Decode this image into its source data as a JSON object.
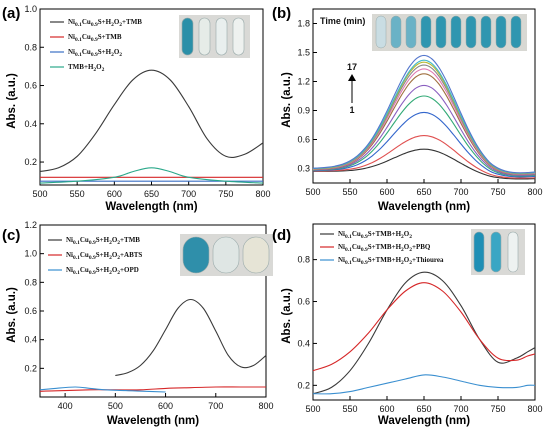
{
  "chart_data": [
    {
      "panel": "(a)",
      "type": "line",
      "xlabel": "Wavelength (nm)",
      "ylabel": "Abs. (a.u.)",
      "xlim": [
        500,
        800
      ],
      "ylim": [
        0.08,
        1.0
      ],
      "xticks": [
        "500",
        "550",
        "600",
        "650",
        "700",
        "750",
        "800"
      ],
      "yticks": [
        "0.2",
        "0.4",
        "0.6",
        "0.8",
        "1.0"
      ],
      "legend_position": "top-left",
      "inset_photo": "four test tubes: blue, clear, clear, clear",
      "series": [
        {
          "name": "Ni0.1Cu0.9S+H2O2+TMB",
          "color": "#3a3a3a",
          "x": [
            500,
            525,
            550,
            575,
            600,
            625,
            650,
            675,
            700,
            725,
            750,
            775,
            800
          ],
          "y": [
            0.15,
            0.17,
            0.23,
            0.35,
            0.5,
            0.63,
            0.68,
            0.63,
            0.49,
            0.32,
            0.23,
            0.24,
            0.3
          ]
        },
        {
          "name": "Ni0.1Cu0.9S+TMB",
          "color": "#d62728",
          "x": [
            500,
            550,
            600,
            650,
            700,
            750,
            800
          ],
          "y": [
            0.12,
            0.12,
            0.12,
            0.12,
            0.12,
            0.12,
            0.12
          ]
        },
        {
          "name": "Ni0.1Cu0.9S+H2O2",
          "color": "#3a6fc4",
          "x": [
            500,
            550,
            600,
            650,
            700,
            750,
            800
          ],
          "y": [
            0.1,
            0.1,
            0.1,
            0.1,
            0.1,
            0.1,
            0.1
          ]
        },
        {
          "name": "TMB+H2O2",
          "color": "#2aa88a",
          "x": [
            500,
            550,
            600,
            625,
            650,
            675,
            700,
            750,
            800
          ],
          "y": [
            0.09,
            0.1,
            0.12,
            0.15,
            0.17,
            0.15,
            0.12,
            0.1,
            0.09
          ]
        }
      ]
    },
    {
      "panel": "(b)",
      "type": "line",
      "xlabel": "Wavelength (nm)",
      "ylabel": "Abs. (a.u.)",
      "xlim": [
        500,
        800
      ],
      "ylim": [
        0.15,
        1.95
      ],
      "xticks": [
        "500",
        "550",
        "600",
        "650",
        "700",
        "750",
        "800"
      ],
      "yticks": [
        "0.3",
        "0.6",
        "0.9",
        "1.2",
        "1.5",
        "1.8"
      ],
      "inset_title": "Time (min)",
      "inset_photo": "row of test tubes turning progressively blue",
      "arrow_top_label": "17",
      "arrow_bottom_label": "1",
      "peak_x": 650,
      "baseline_left": 0.27,
      "series_peaks": [
        0.5,
        0.64,
        0.88,
        1.05,
        1.16,
        1.28,
        1.33,
        1.37,
        1.4,
        1.42,
        1.47
      ],
      "series_colors": [
        "#333333",
        "#e05050",
        "#3366cc",
        "#33aa77",
        "#8a5fc0",
        "#a07040",
        "#e07ab0",
        "#888888",
        "#b8b830",
        "#40b8c8",
        "#5577cc"
      ]
    },
    {
      "panel": "(c)",
      "type": "line",
      "xlabel": "Wavelength (nm)",
      "ylabel": "Abs. (a.u.)",
      "xlim": [
        350,
        800
      ],
      "ylim": [
        0.0,
        1.2
      ],
      "xticks": [
        "400",
        "500",
        "600",
        "700",
        "800"
      ],
      "yticks": [
        "0.2",
        "0.4",
        "0.6",
        "0.8",
        "1.0",
        "1.2"
      ],
      "legend_position": "top-left",
      "inset_photo": "three vials: blue, light, pale",
      "series": [
        {
          "name": "Ni0.1Cu0.9S+H2O2+TMB",
          "color": "#3a3a3a",
          "x": [
            500,
            525,
            550,
            575,
            600,
            625,
            650,
            675,
            700,
            725,
            750,
            775,
            800
          ],
          "y": [
            0.15,
            0.17,
            0.22,
            0.32,
            0.47,
            0.62,
            0.68,
            0.62,
            0.46,
            0.29,
            0.21,
            0.22,
            0.29
          ]
        },
        {
          "name": "Ni0.1Cu0.9S+H2O2+ABTS",
          "color": "#d62728",
          "x": [
            350,
            400,
            450,
            500,
            550,
            600,
            650,
            700,
            750,
            800
          ],
          "y": [
            0.04,
            0.045,
            0.05,
            0.05,
            0.05,
            0.06,
            0.065,
            0.07,
            0.07,
            0.07
          ]
        },
        {
          "name": "Ni0.1Cu0.9S+H2O2+OPD",
          "color": "#3a8fd0",
          "x": [
            350,
            380,
            420,
            450,
            480,
            520,
            560,
            600
          ],
          "y": [
            0.05,
            0.06,
            0.07,
            0.06,
            0.05,
            0.045,
            0.04,
            0.035
          ]
        }
      ]
    },
    {
      "panel": "(d)",
      "type": "line",
      "xlabel": "Wavelength (nm)",
      "ylabel": "Abs. (a.u.)",
      "xlim": [
        500,
        800
      ],
      "ylim": [
        0.13,
        0.97
      ],
      "xticks": [
        "500",
        "550",
        "600",
        "650",
        "700",
        "750",
        "800"
      ],
      "yticks": [
        "0.2",
        "0.4",
        "0.6",
        "0.8"
      ],
      "legend_position": "top-left",
      "inset_photo": "three test tubes: blue, blue, clear",
      "series": [
        {
          "name": "Ni0.1Cu0.9S+TMB+H2O2",
          "color": "#3a3a3a",
          "x": [
            500,
            525,
            550,
            575,
            600,
            625,
            650,
            675,
            700,
            725,
            750,
            775,
            790,
            800
          ],
          "y": [
            0.16,
            0.19,
            0.27,
            0.4,
            0.56,
            0.69,
            0.74,
            0.7,
            0.58,
            0.42,
            0.31,
            0.33,
            0.36,
            0.38
          ]
        },
        {
          "name": "Ni0.1Cu0.9S+TMB+H2O2+PBQ",
          "color": "#d62728",
          "x": [
            500,
            525,
            550,
            575,
            600,
            625,
            650,
            675,
            700,
            725,
            750,
            775,
            790,
            800
          ],
          "y": [
            0.27,
            0.3,
            0.36,
            0.45,
            0.56,
            0.65,
            0.69,
            0.65,
            0.55,
            0.42,
            0.33,
            0.32,
            0.34,
            0.35
          ]
        },
        {
          "name": "Ni0.1Cu0.9S+TMB+H2O2+Thiourea",
          "color": "#3a8fd0",
          "x": [
            500,
            525,
            550,
            575,
            600,
            625,
            650,
            675,
            700,
            725,
            750,
            775,
            790,
            800
          ],
          "y": [
            0.16,
            0.16,
            0.17,
            0.19,
            0.21,
            0.23,
            0.25,
            0.24,
            0.22,
            0.2,
            0.19,
            0.19,
            0.2,
            0.2
          ]
        }
      ]
    }
  ]
}
